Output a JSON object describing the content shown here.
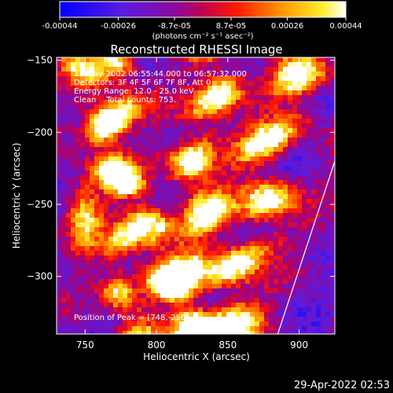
{
  "chart_data": {
    "type": "heatmap",
    "title": "Reconstructed RHESSI Image",
    "xlabel": "Heliocentric X (arcsec)",
    "ylabel": "Heliocentric Y (arcsec)",
    "xlim": [
      730,
      925
    ],
    "ylim": [
      -340,
      -148
    ],
    "x_ticks": [
      750,
      800,
      850,
      900
    ],
    "y_ticks": [
      -150,
      -200,
      -250,
      -300
    ],
    "colorbar": {
      "ticks": [
        "-0.00044",
        "-0.00026",
        "-8.7e-05",
        "8.7e-05",
        "0.00026",
        "0.00044"
      ],
      "tick_values": [
        -0.00044,
        -0.00026,
        -8.7e-05,
        8.7e-05,
        0.00026,
        0.00044
      ],
      "range": [
        -0.00044,
        0.00044
      ],
      "unit_label": "(photons cm⁻² s⁻¹ asec⁻²)",
      "colormap": [
        "#0000ff",
        "#6a2ad0",
        "#a30080",
        "#ff0000",
        "#ff9a00",
        "#ffff40",
        "#ffffff"
      ]
    },
    "annotations": {
      "time": "12-May-2002 06:55:44.000 to 06:57:32.000",
      "detectors": "Detectors: 3F 4F 5F 6F 7F 8F, Att 0",
      "energy": "Energy Range: 12.0 - 25.0 keV",
      "clean": "Clean    Total counts: 753.",
      "peak": "Position of Peak = [748,-256]"
    },
    "limb_line": [
      [
        885,
        -340
      ],
      [
        925,
        -220
      ]
    ]
  },
  "footer": {
    "timestamp": "29-Apr-2022 02:53"
  }
}
